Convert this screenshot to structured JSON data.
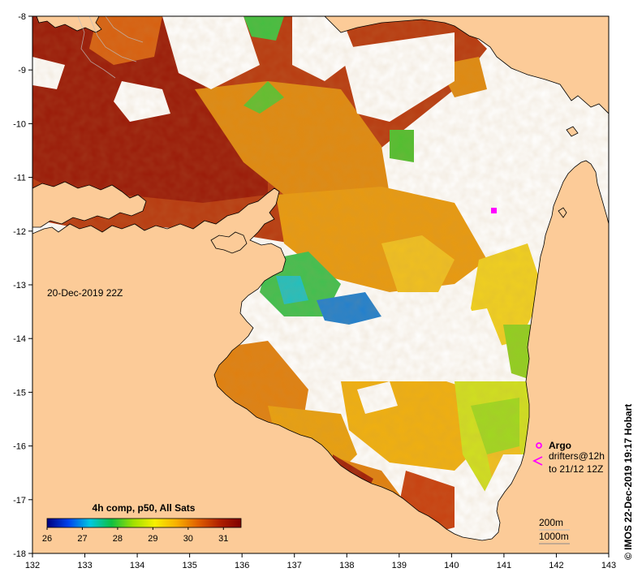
{
  "map": {
    "timestamp_label": "20-Dec-2019 22Z",
    "credit": "© IMOS 22-Dec-2019 19:17 Hobart",
    "lon_ticks": [
      "132",
      "133",
      "134",
      "135",
      "136",
      "137",
      "138",
      "139",
      "140",
      "141",
      "142",
      "143"
    ],
    "lat_ticks": [
      "-8",
      "-9",
      "-10",
      "-11",
      "-12",
      "-13",
      "-14",
      "-15",
      "-16",
      "-17",
      "-18"
    ],
    "lon_range": [
      132,
      143
    ],
    "lat_range": [
      -18,
      -8
    ],
    "colors": {
      "land": "#fccb98",
      "no_data": "#ffffff",
      "coastline": "#000000"
    }
  },
  "colorbar": {
    "title": "4h comp, p50, All Sats",
    "tick_labels": [
      "26",
      "27",
      "28",
      "29",
      "30",
      "31"
    ],
    "range": [
      26,
      31.5
    ],
    "gradient": [
      "#00007f",
      "#0044ee",
      "#00c8e0",
      "#10c040",
      "#a0e000",
      "#f8f000",
      "#f8b000",
      "#e06000",
      "#b02000",
      "#800000"
    ]
  },
  "legend": {
    "argo_label": "Argo",
    "drifters_label": "drifters@12h",
    "drifters_period": "to 21/12 12Z",
    "argo_color": "#ff00ff",
    "drifter_color": "#ff00ff",
    "depth_200": "200m",
    "depth_1000": "1000m"
  }
}
